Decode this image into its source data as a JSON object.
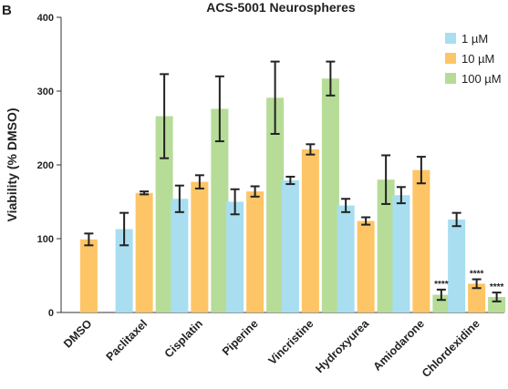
{
  "panel_label": "B",
  "chart_data": {
    "type": "bar",
    "title": "ACS-5001 Neurospheres",
    "xlabel": "",
    "ylabel": "Viability (% DMSO)",
    "ylim": [
      0,
      400
    ],
    "yticks": [
      0,
      100,
      200,
      300,
      400
    ],
    "categories": [
      "DMSO",
      "Paclitaxel",
      "Cisplatin",
      "Piperine",
      "Vincristine",
      "Hydroxyurea",
      "Amiodarone",
      "Chlordexidine"
    ],
    "legend_position": "top-right",
    "series": [
      {
        "name": "1 µM",
        "color": "#a8def0",
        "values": [
          null,
          113,
          154,
          150,
          179,
          145,
          159,
          126
        ],
        "errors": [
          null,
          22,
          18,
          17,
          5,
          9,
          11,
          9
        ]
      },
      {
        "name": "10 µM",
        "color": "#fdc566",
        "values": [
          99,
          162,
          177,
          164,
          221,
          124,
          193,
          39
        ],
        "errors": [
          8,
          2,
          9,
          7,
          7,
          5,
          18,
          6
        ]
      },
      {
        "name": "100 µM",
        "color": "#b6dc98",
        "values": [
          null,
          266,
          276,
          291,
          317,
          180,
          24,
          21
        ],
        "errors": [
          null,
          57,
          44,
          49,
          23,
          33,
          7,
          6
        ]
      }
    ],
    "annotations": [
      {
        "category": "Amiodarone",
        "series": "100 µM",
        "text": "****"
      },
      {
        "category": "Chlordexidine",
        "series": "10 µM",
        "text": "****"
      },
      {
        "category": "Chlordexidine",
        "series": "100 µM",
        "text": "****"
      }
    ],
    "grid": false
  }
}
